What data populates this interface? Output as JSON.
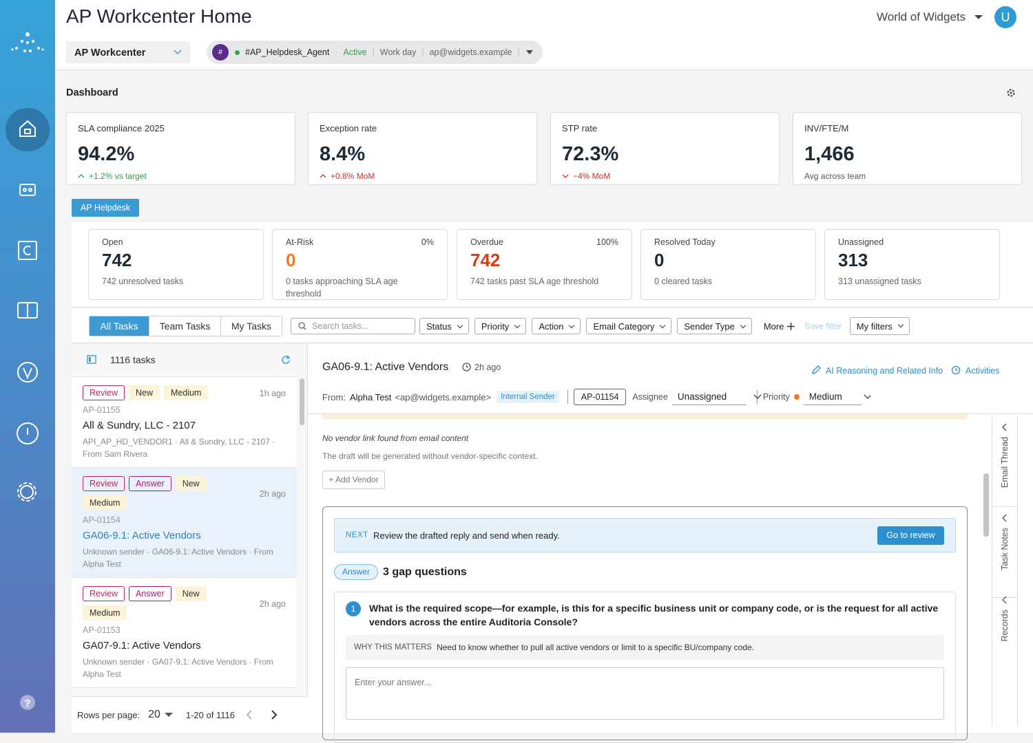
{
  "header": {
    "title": "AP Workcenter Home",
    "org": "World of Widgets",
    "avatar": "U"
  },
  "toolbar": {
    "workspace": "AP Workcenter",
    "channel": {
      "hash": "#",
      "name": "#AP_Helpdesk_Agent",
      "status": "Active",
      "schedule": "Work day",
      "email": "ap@widgets.example"
    }
  },
  "dashboard": {
    "title": "Dashboard",
    "kpis": [
      {
        "label": "SLA compliance 2025",
        "value": "94.2%",
        "delta": "+1.2% vs target",
        "trend": "up-good"
      },
      {
        "label": "Exception rate",
        "value": "8.4%",
        "delta": "+0.8% MoM",
        "trend": "up-bad"
      },
      {
        "label": "STP rate",
        "value": "72.3%",
        "delta": "−4% MoM",
        "trend": "down-bad"
      },
      {
        "label": "INV/FTE/M",
        "value": "1,466",
        "delta": "Avg across team",
        "trend": "none"
      }
    ]
  },
  "helpdesk": {
    "tab": "AP Helpdesk",
    "stats": [
      {
        "label": "Open",
        "value": "742",
        "note": "742 unresolved tasks",
        "tone": "normal"
      },
      {
        "label": "At-Risk",
        "pct": "0%",
        "value": "0",
        "note": "0 tasks approaching SLA age threshold",
        "tone": "warn"
      },
      {
        "label": "Overdue",
        "pct": "100%",
        "value": "742",
        "note": "742 tasks past SLA age threshold",
        "tone": "bad"
      },
      {
        "label": "Resolved Today",
        "value": "0",
        "note": "0 cleared tasks",
        "tone": "normal"
      },
      {
        "label": "Unassigned",
        "value": "313",
        "note": "313 unassigned tasks",
        "tone": "normal"
      }
    ]
  },
  "filters": {
    "tabs": [
      "All Tasks",
      "Team Tasks",
      "My Tasks"
    ],
    "search": "Search tasks...",
    "dropdowns": [
      "Status",
      "Priority",
      "Action",
      "Email Category",
      "Sender Type"
    ],
    "more": "More",
    "save": "Save filter",
    "my_filters": "My filters"
  },
  "task_list": {
    "count": "1116 tasks",
    "tasks": [
      {
        "tags": [
          "Review",
          "New",
          "Medium"
        ],
        "time": "1h ago",
        "id": "AP-01155",
        "title": "All & Sundry, LLC - 2107",
        "meta": "API_AP_HD_VENDOR1 · All & Sundry, LLC - 2107 · From Sam Rivera"
      },
      {
        "tags": [
          "Review",
          "Answer",
          "New",
          "Medium"
        ],
        "time": "2h ago",
        "id": "AP-01154",
        "title": "GA06-9.1: Active Vendors",
        "meta": "Unknown sender · GA06-9.1: Active Vendors · From Alpha Test",
        "selected": true
      },
      {
        "tags": [
          "Review",
          "Answer",
          "New",
          "Medium"
        ],
        "time": "2h ago",
        "id": "AP-01153",
        "title": "GA07-9.1: Active Vendors",
        "meta": "Unknown sender · GA07-9.1: Active Vendors · From Alpha Test"
      }
    ],
    "rows_label": "Rows per page:",
    "rows": "20",
    "range": "1-20 of 1116"
  },
  "detail": {
    "title": "GA06-9.1: Active Vendors",
    "age": "2h ago",
    "ai_link": "AI Reasoning and Related Info",
    "activities": "Activities",
    "from_label": "From:",
    "sender": "Alpha Test",
    "sender_email": "<ap@widgets.example>",
    "sender_badge": "Internal Sender",
    "ticket": "AP-01154",
    "assignee_label": "Assignee",
    "assignee": "Unassigned",
    "priority_label": "Priority",
    "priority": "Medium",
    "vendor_note": "No vendor link found from email content",
    "vendor_sub": "The draft will be generated without vendor-specific context.",
    "add_vendor": "+ Add Vendor",
    "next_label": "NEXT",
    "next_text": "Review the drafted reply and send when ready.",
    "next_button": "Go to review",
    "answer_badge": "Answer",
    "gap_title": "3 gap questions",
    "question": {
      "number": "1",
      "text": "What is the required scope—for example, is this for a specific business unit or company code, or is the request for all active vendors across the entire Auditoria Console?",
      "why_label": "WHY THIS MATTERS",
      "why_text": "Need to know whether to pull all active vendors or limit to a specific BU/company code.",
      "placeholder": "Enter your answer..."
    },
    "side_tabs": [
      "Email Thread",
      "Task Notes",
      "Records"
    ]
  }
}
